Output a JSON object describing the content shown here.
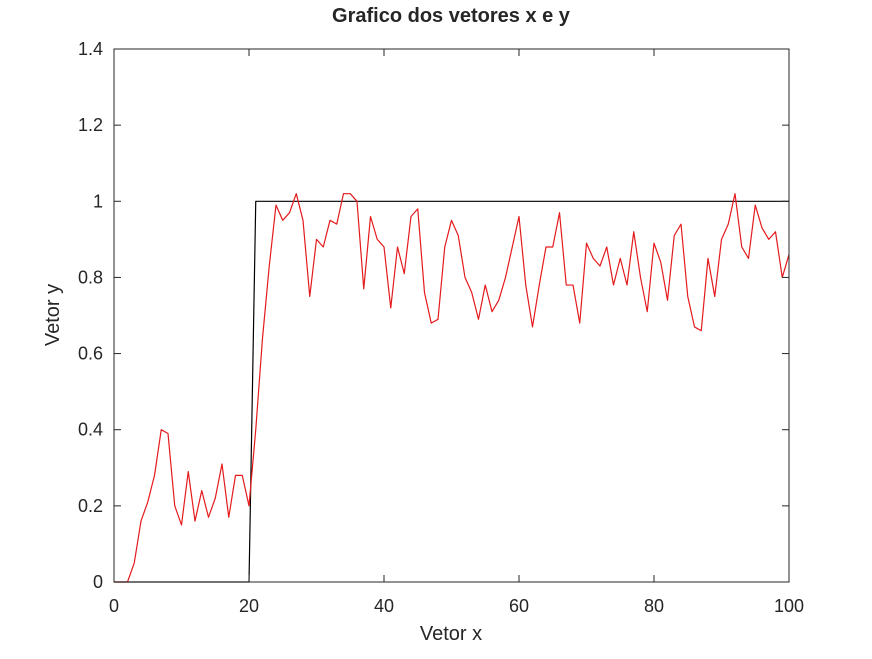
{
  "chart_data": {
    "type": "line",
    "title": "Grafico dos vetores x e y",
    "xlabel": "Vetor x",
    "ylabel": "Vetor y",
    "xlim": [
      0,
      100
    ],
    "ylim": [
      0,
      1.4
    ],
    "xticks": [
      0,
      20,
      40,
      60,
      80,
      100
    ],
    "yticks": [
      0,
      0.2,
      0.4,
      0.6,
      0.8,
      1,
      1.2,
      1.4
    ],
    "xtick_labels": [
      "0",
      "20",
      "40",
      "60",
      "80",
      "100"
    ],
    "ytick_labels": [
      "0",
      "0.2",
      "0.4",
      "0.6",
      "0.8",
      "1",
      "1.2",
      "1.4"
    ],
    "grid": false,
    "series": [
      {
        "color": "#000000",
        "x": [
          0,
          20,
          21,
          100
        ],
        "y": [
          0,
          0,
          1,
          1
        ]
      },
      {
        "color": "#e41a1c",
        "x": [
          0,
          1,
          2,
          3,
          4,
          5,
          6,
          7,
          8,
          9,
          10,
          11,
          12,
          13,
          14,
          15,
          16,
          17,
          18,
          19,
          20,
          21,
          22,
          23,
          24,
          25,
          26,
          27,
          28,
          29,
          30,
          31,
          32,
          33,
          34,
          35,
          36,
          37,
          38,
          39,
          40,
          41,
          42,
          43,
          44,
          45,
          46,
          47,
          48,
          49,
          50,
          51,
          52,
          53,
          54,
          55,
          56,
          57,
          58,
          59,
          60,
          61,
          62,
          63,
          64,
          65,
          66,
          67,
          68,
          69,
          70,
          71,
          72,
          73,
          74,
          75,
          76,
          77,
          78,
          79,
          80,
          81,
          82,
          83,
          84,
          85,
          86,
          87,
          88,
          89,
          90,
          91,
          92,
          93,
          94,
          95,
          96,
          97,
          98,
          99,
          100
        ],
        "y": [
          0,
          0,
          0,
          0.05,
          0.16,
          0.21,
          0.28,
          0.4,
          0.39,
          0.2,
          0.15,
          0.29,
          0.16,
          0.24,
          0.17,
          0.22,
          0.31,
          0.17,
          0.28,
          0.28,
          0.2,
          0.4,
          0.64,
          0.83,
          0.99,
          0.95,
          0.97,
          1.02,
          0.95,
          0.75,
          0.9,
          0.88,
          0.95,
          0.94,
          1.02,
          1.02,
          1.0,
          0.77,
          0.96,
          0.9,
          0.88,
          0.72,
          0.88,
          0.81,
          0.96,
          0.98,
          0.76,
          0.68,
          0.69,
          0.88,
          0.95,
          0.91,
          0.8,
          0.76,
          0.69,
          0.78,
          0.71,
          0.74,
          0.8,
          0.88,
          0.96,
          0.78,
          0.67,
          0.78,
          0.88,
          0.88,
          0.97,
          0.78,
          0.78,
          0.68,
          0.89,
          0.85,
          0.83,
          0.88,
          0.78,
          0.85,
          0.78,
          0.92,
          0.8,
          0.71,
          0.89,
          0.84,
          0.74,
          0.91,
          0.94,
          0.75,
          0.67,
          0.66,
          0.85,
          0.75,
          0.9,
          0.94,
          1.02,
          0.88,
          0.85,
          0.99,
          0.93,
          0.9,
          0.92,
          0.8,
          0.86
        ]
      }
    ]
  }
}
